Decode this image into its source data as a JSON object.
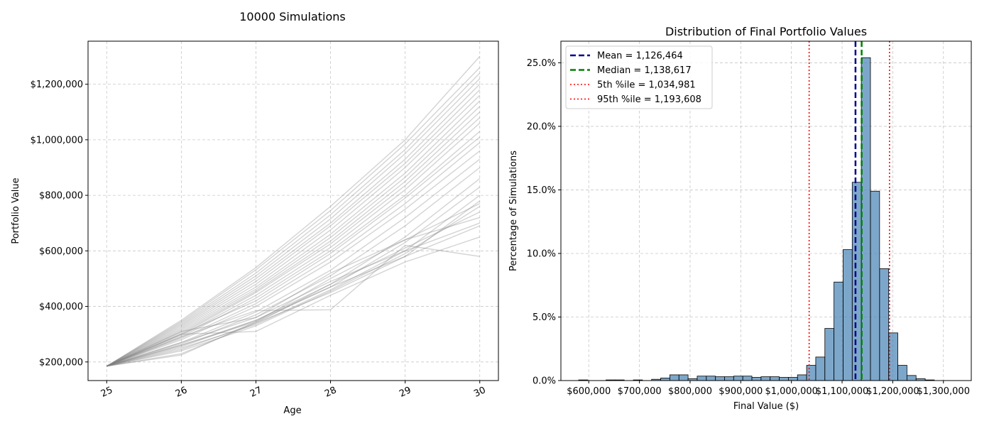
{
  "figure_title": "10000 Simulations",
  "chart_data": [
    {
      "type": "line",
      "title": "",
      "xlabel": "Age",
      "ylabel": "Portfolio Value",
      "x": [
        25,
        26,
        27,
        28,
        29,
        30
      ],
      "x_tick_labels": [
        "25",
        "26",
        "27",
        "28",
        "29",
        "30"
      ],
      "y_ticks": [
        200000,
        400000,
        600000,
        800000,
        1000000,
        1200000
      ],
      "y_tick_labels": [
        "$200,000",
        "$400,000",
        "$600,000",
        "$800,000",
        "$1,000,000",
        "$1,200,000"
      ],
      "xlim": [
        24.75,
        30.25
      ],
      "ylim": [
        133000,
        1355000
      ],
      "grid": true,
      "line_color": "#808080",
      "series_count": 10000,
      "series_sample": [
        {
          "values": [
            185000,
            350000,
            540000,
            760000,
            1000000,
            1300000
          ]
        },
        {
          "values": [
            185000,
            345000,
            532000,
            745000,
            985000,
            1260000
          ]
        },
        {
          "values": [
            185000,
            340000,
            520000,
            730000,
            965000,
            1240000
          ]
        },
        {
          "values": [
            185000,
            335000,
            510000,
            715000,
            950000,
            1220000
          ]
        },
        {
          "values": [
            185000,
            330000,
            500000,
            700000,
            930000,
            1200000
          ]
        },
        {
          "values": [
            185000,
            325000,
            490000,
            690000,
            915000,
            1180000
          ]
        },
        {
          "values": [
            185000,
            320000,
            480000,
            675000,
            900000,
            1160000
          ]
        },
        {
          "values": [
            185000,
            315000,
            470000,
            660000,
            880000,
            1140000
          ]
        },
        {
          "values": [
            185000,
            310000,
            462000,
            648000,
            865000,
            1120000
          ]
        },
        {
          "values": [
            185000,
            305000,
            455000,
            635000,
            850000,
            1100000
          ]
        },
        {
          "values": [
            185000,
            300000,
            450000,
            625000,
            835000,
            1080000
          ]
        },
        {
          "values": [
            185000,
            295000,
            440000,
            612000,
            820000,
            1060000
          ]
        },
        {
          "values": [
            185000,
            290000,
            430000,
            600000,
            800000,
            1030000
          ]
        },
        {
          "values": [
            185000,
            300000,
            420000,
            590000,
            790000,
            1010000
          ]
        },
        {
          "values": [
            185000,
            285000,
            410000,
            575000,
            770000,
            990000
          ]
        },
        {
          "values": [
            185000,
            280000,
            400000,
            560000,
            750000,
            960000
          ]
        },
        {
          "values": [
            185000,
            270000,
            380000,
            530000,
            720000,
            930000
          ]
        },
        {
          "values": [
            185000,
            265000,
            370000,
            510000,
            690000,
            900000
          ]
        },
        {
          "values": [
            185000,
            255000,
            350000,
            480000,
            650000,
            860000
          ]
        },
        {
          "values": [
            185000,
            260000,
            345000,
            470000,
            630000,
            830000
          ]
        },
        {
          "values": [
            185000,
            250000,
            335000,
            460000,
            600000,
            800000
          ]
        },
        {
          "values": [
            185000,
            245000,
            340000,
            450000,
            580000,
            780000
          ]
        },
        {
          "values": [
            185000,
            240000,
            330000,
            455000,
            590000,
            760000
          ]
        },
        {
          "values": [
            185000,
            230000,
            340000,
            480000,
            610000,
            740000
          ]
        },
        {
          "values": [
            185000,
            225000,
            345000,
            500000,
            640000,
            770000
          ]
        },
        {
          "values": [
            185000,
            270000,
            360000,
            520000,
            640000,
            720000
          ]
        },
        {
          "values": [
            185000,
            260000,
            350000,
            470000,
            580000,
            690000
          ]
        },
        {
          "values": [
            185000,
            300000,
            310000,
            440000,
            560000,
            650000
          ]
        },
        {
          "values": [
            185000,
            290000,
            385000,
            388000,
            620000,
            580000
          ]
        },
        {
          "values": [
            185000,
            310000,
            360000,
            490000,
            600000,
            700000
          ]
        }
      ]
    },
    {
      "type": "bar",
      "title": "Distribution of Final Portfolio Values",
      "xlabel": "Final Value ($)",
      "ylabel": "Percentage of Simulations",
      "x_ticks": [
        600000,
        700000,
        800000,
        900000,
        1000000,
        1100000,
        1200000,
        1300000
      ],
      "x_tick_labels": [
        "$600,000",
        "$700,000",
        "$800,000",
        "$900,000",
        "$1,000,000",
        "$1,100,000",
        "$1,200,000",
        "$1,300,000"
      ],
      "y_ticks": [
        0,
        5,
        10,
        15,
        20,
        25
      ],
      "y_tick_labels": [
        "0.0%",
        "5.0%",
        "10.0%",
        "15.0%",
        "20.0%",
        "25.0%"
      ],
      "xlim": [
        545000,
        1355000
      ],
      "ylim": [
        0,
        26.7
      ],
      "grid": true,
      "bin_start": 580000,
      "bin_width": 18000,
      "values": [
        0.05,
        0.0,
        0.0,
        0.05,
        0.05,
        0.0,
        0.05,
        0.0,
        0.1,
        0.2,
        0.45,
        0.45,
        0.15,
        0.35,
        0.35,
        0.3,
        0.3,
        0.35,
        0.35,
        0.25,
        0.3,
        0.3,
        0.25,
        0.25,
        0.45,
        1.2,
        1.85,
        4.1,
        7.75,
        10.3,
        15.6,
        25.4,
        14.9,
        8.8,
        3.75,
        1.2,
        0.4,
        0.15,
        0.05,
        0.0
      ],
      "bar_color": "#4682b4",
      "legend_position": "top-left",
      "reference_lines": [
        {
          "label": "Mean = 1,126,464",
          "value": 1126464,
          "color": "#00008b",
          "style": "dashed"
        },
        {
          "label": "Median = 1,138,617",
          "value": 1138617,
          "color": "#008000",
          "style": "dashed"
        },
        {
          "label": "5th %ile = 1,034,981",
          "value": 1034981,
          "color": "#ff0000",
          "style": "dotted"
        },
        {
          "label": "95th %ile = 1,193,608",
          "value": 1193608,
          "color": "#ff0000",
          "style": "dotted"
        }
      ]
    }
  ]
}
